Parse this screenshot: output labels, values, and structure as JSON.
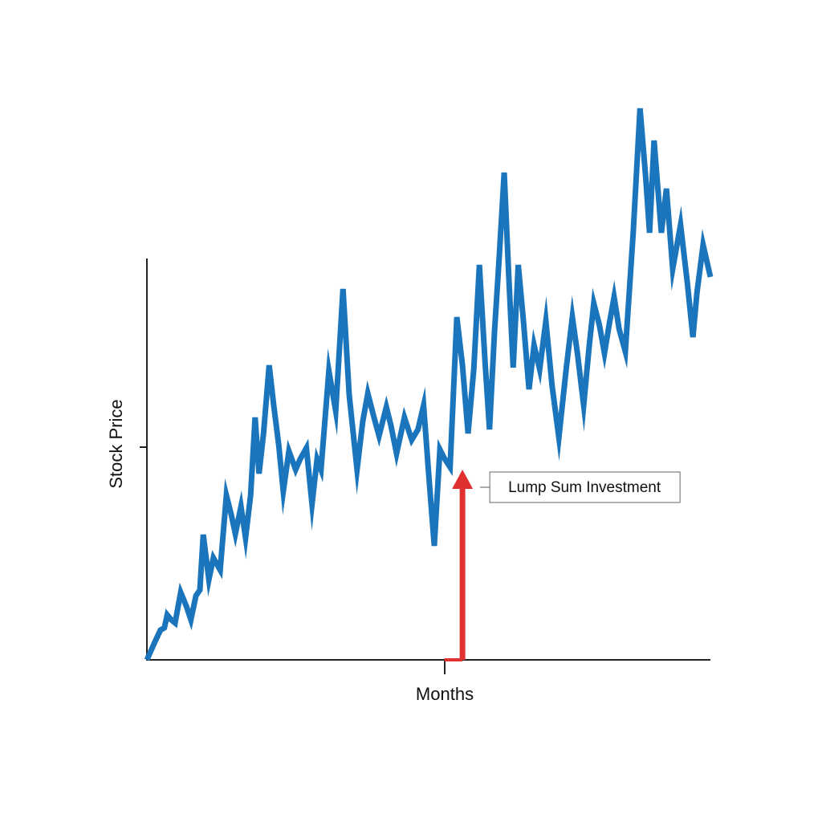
{
  "chart_data": {
    "type": "line",
    "x_label": "Months",
    "y_label": "Stock Price",
    "xlim": [
      0,
      100
    ],
    "ylim": [
      0,
      140
    ],
    "x": [
      0,
      1.4,
      2.4,
      3.1,
      3.6,
      4.3,
      5.0,
      6.0,
      7.0,
      7.8,
      8.7,
      9.4,
      10.0,
      11.0,
      11.8,
      13.0,
      14.1,
      15.0,
      15.7,
      16.7,
      17.5,
      18.4,
      19.2,
      19.9,
      20.7,
      21.7,
      22.5,
      23.4,
      24.2,
      25.2,
      26.4,
      27.2,
      28.3,
      29.3,
      30.2,
      30.9,
      32.3,
      33.5,
      34.8,
      35.9,
      37.3,
      38.3,
      39.2,
      40.3,
      41.2,
      42.5,
      43.3,
      44.3,
      45.7,
      47.0,
      48.1,
      49.1,
      50.0,
      51.0,
      52.0,
      52.7,
      53.8,
      55.0,
      56.0,
      57.0,
      58.0,
      59.0,
      60.0,
      60.8,
      61.7,
      62.5,
      63.4,
      64.2,
      65.0,
      65.9,
      66.8,
      67.8,
      68.7,
      69.7,
      70.8,
      71.9,
      73.1,
      74.4,
      75.5,
      76.4,
      77.5,
      78.5,
      79.3,
      80.3,
      81.2,
      82.1,
      82.9,
      83.8,
      84.9,
      86.3,
      87.5,
      88.5,
      89.2,
      90.0,
      91.3,
      92.2,
      93.3,
      94.7,
      95.9,
      96.9,
      97.6,
      98.7,
      100
    ],
    "series": [
      {
        "color": "#1b75bc",
        "values": [
          0,
          4.4,
          7.4,
          8,
          11.2,
          10,
          9.2,
          16.8,
          13.4,
          10,
          16,
          17.4,
          31.2,
          20,
          25.4,
          22.4,
          41,
          36,
          31.4,
          38.2,
          30.4,
          41,
          60.4,
          46.4,
          56.4,
          73.4,
          63.4,
          53.4,
          42,
          52,
          47.4,
          50,
          52.8,
          38.8,
          50,
          47.4,
          72,
          62,
          92.4,
          66,
          47.4,
          59.4,
          66.4,
          60.4,
          55.8,
          63,
          58.4,
          51.4,
          60.4,
          54.8,
          57.4,
          63.4,
          46.4,
          28.4,
          52.4,
          50.4,
          48,
          85.4,
          73.4,
          56.4,
          72.4,
          98.4,
          74.4,
          57.4,
          82,
          100,
          121.4,
          96,
          72.8,
          98.4,
          84.8,
          67.4,
          78.4,
          72.4,
          84.4,
          68.4,
          55.4,
          72.4,
          85.4,
          76.4,
          63.4,
          78.4,
          88.8,
          83.4,
          76.4,
          84,
          90.4,
          82.4,
          76.8,
          106.4,
          137.4,
          120.4,
          106.4,
          129.4,
          106.4,
          117.4,
          97.4,
          108.4,
          94,
          80.4,
          91.4,
          103.4,
          95.4
        ]
      }
    ],
    "annotations": [
      {
        "text": "Lump Sum Investment",
        "x": 56,
        "y": 47.4,
        "color": "#e03030"
      }
    ]
  }
}
